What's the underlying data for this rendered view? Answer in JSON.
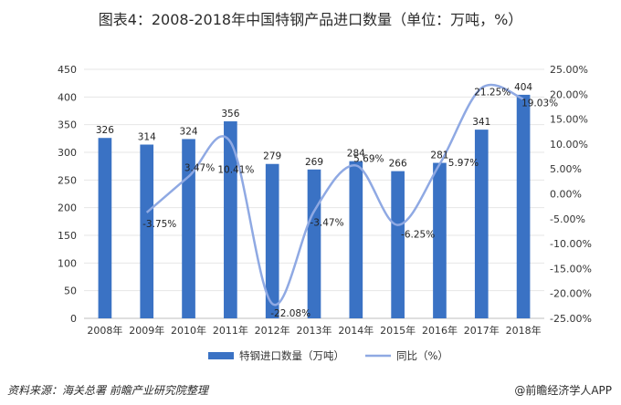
{
  "chart_data": {
    "type": "bar",
    "title": "图表4：2008-2018年中国特钢产品进口数量（单位：万吨，%）",
    "categories": [
      "2008年",
      "2009年",
      "2010年",
      "2011年",
      "2012年",
      "2013年",
      "2014年",
      "2015年",
      "2016年",
      "2017年",
      "2018年"
    ],
    "series": [
      {
        "name": "特钢进口数量（万吨）",
        "kind": "bar",
        "axis": "left",
        "values": [
          326,
          314,
          324,
          356,
          279,
          269,
          284,
          266,
          281,
          341,
          404
        ],
        "labels": [
          "326",
          "314",
          "324",
          "356",
          "279",
          "269",
          "284",
          "266",
          "281",
          "341",
          "404"
        ]
      },
      {
        "name": "同比（%）",
        "kind": "line",
        "axis": "right",
        "values": [
          null,
          -3.75,
          3.47,
          10.41,
          -22.08,
          -3.47,
          5.69,
          -6.25,
          5.97,
          21.25,
          19.03
        ],
        "labels": [
          "",
          "-3.75%",
          "3.47%",
          "10.41%",
          "-22.08%",
          "-3.47%",
          "5.69%",
          "-6.25%",
          "5.97%",
          "21.25%",
          "19.03%"
        ]
      }
    ],
    "y_left": {
      "min": 0,
      "max": 450,
      "step": 50,
      "ticks": [
        "0",
        "50",
        "100",
        "150",
        "200",
        "250",
        "300",
        "350",
        "400",
        "450"
      ]
    },
    "y_right": {
      "min": -25,
      "max": 25,
      "step": 5,
      "ticks": [
        "-25.00%",
        "-20.00%",
        "-15.00%",
        "-10.00%",
        "-5.00%",
        "0.00%",
        "5.00%",
        "10.00%",
        "15.00%",
        "20.00%",
        "25.00%"
      ]
    },
    "legend_position": "bottom",
    "colors": {
      "bar": "#3a72c4",
      "line": "#8fa9e3"
    }
  },
  "footer": {
    "source": "资料来源：海关总署  前瞻产业研究院整理",
    "brand": "@前瞻经济学人APP"
  }
}
